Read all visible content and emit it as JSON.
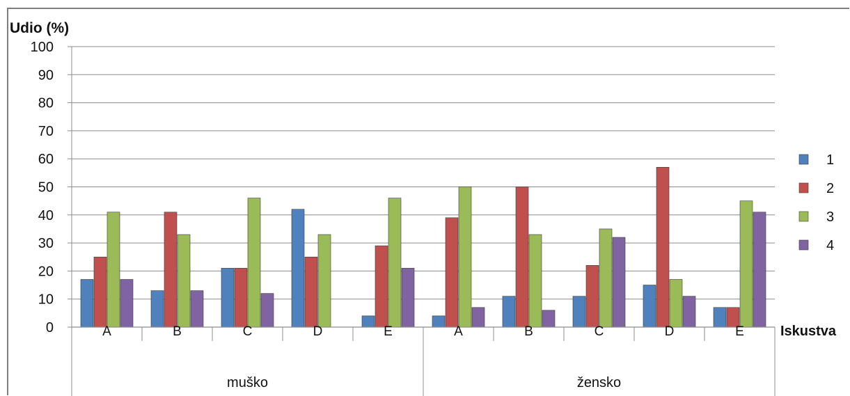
{
  "chart_data": {
    "type": "bar",
    "ylabel": "Udio (%)",
    "xlabel": "Iskustva",
    "ylim": [
      0,
      100
    ],
    "yticks": [
      0,
      10,
      20,
      30,
      40,
      50,
      60,
      70,
      80,
      90,
      100
    ],
    "grid": true,
    "legend_position": "right",
    "groups": [
      {
        "label": "muško",
        "categories": [
          "A",
          "B",
          "C",
          "D",
          "E"
        ]
      },
      {
        "label": "žensko",
        "categories": [
          "A",
          "B",
          "C",
          "D",
          "E"
        ]
      }
    ],
    "series": [
      {
        "name": "1",
        "color": "#4f81bd",
        "values": [
          17,
          13,
          21,
          42,
          4,
          4,
          11,
          11,
          15,
          7
        ]
      },
      {
        "name": "2",
        "color": "#c0504d",
        "values": [
          25,
          41,
          21,
          25,
          29,
          39,
          50,
          22,
          57,
          7
        ]
      },
      {
        "name": "3",
        "color": "#9bbb59",
        "values": [
          41,
          33,
          46,
          33,
          46,
          50,
          33,
          35,
          17,
          45
        ]
      },
      {
        "name": "4",
        "color": "#8064a2",
        "values": [
          17,
          13,
          12,
          0,
          21,
          7,
          6,
          32,
          11,
          41
        ]
      }
    ]
  }
}
